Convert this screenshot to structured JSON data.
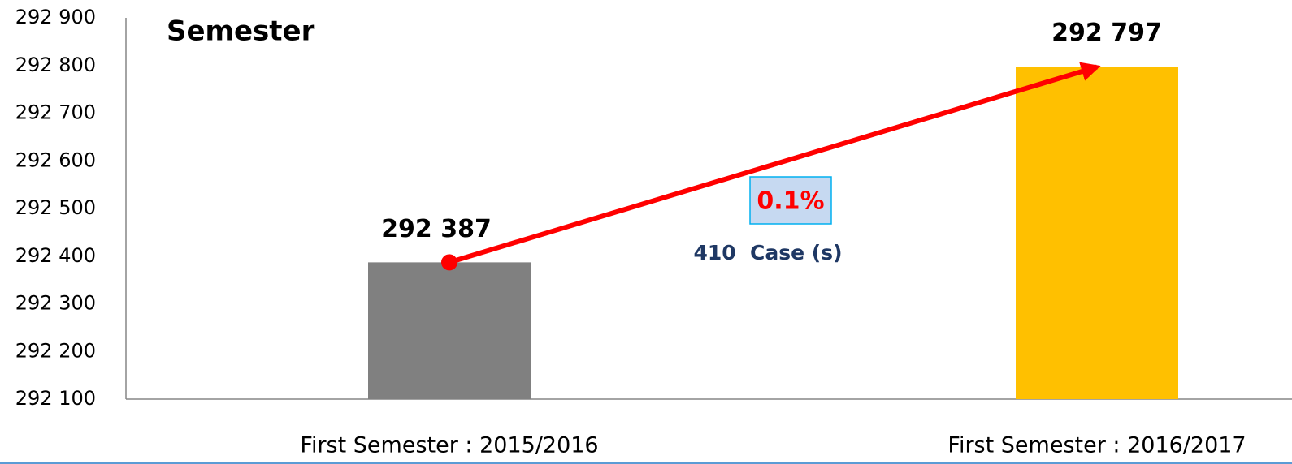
{
  "chart_data": {
    "type": "bar",
    "title": "Semester",
    "categories": [
      "First Semester : 2015/2016",
      "First Semester : 2016/2017"
    ],
    "values": [
      292387,
      292797
    ],
    "value_labels": [
      "292 387",
      "292 797"
    ],
    "colors": [
      "#808080",
      "#ffc000"
    ],
    "ylim": [
      292100,
      292900
    ],
    "yticks": [
      {
        "value": 292100,
        "label": "292 100"
      },
      {
        "value": 292200,
        "label": "292 200"
      },
      {
        "value": 292300,
        "label": "292 300"
      },
      {
        "value": 292400,
        "label": "292 400"
      },
      {
        "value": 292500,
        "label": "292 500"
      },
      {
        "value": 292600,
        "label": "292 600"
      },
      {
        "value": 292700,
        "label": "292 700"
      },
      {
        "value": 292800,
        "label": "292 800"
      },
      {
        "value": 292900,
        "label": "292 900"
      }
    ],
    "annotations": [
      "0.1%",
      "410  Case (s)"
    ]
  }
}
